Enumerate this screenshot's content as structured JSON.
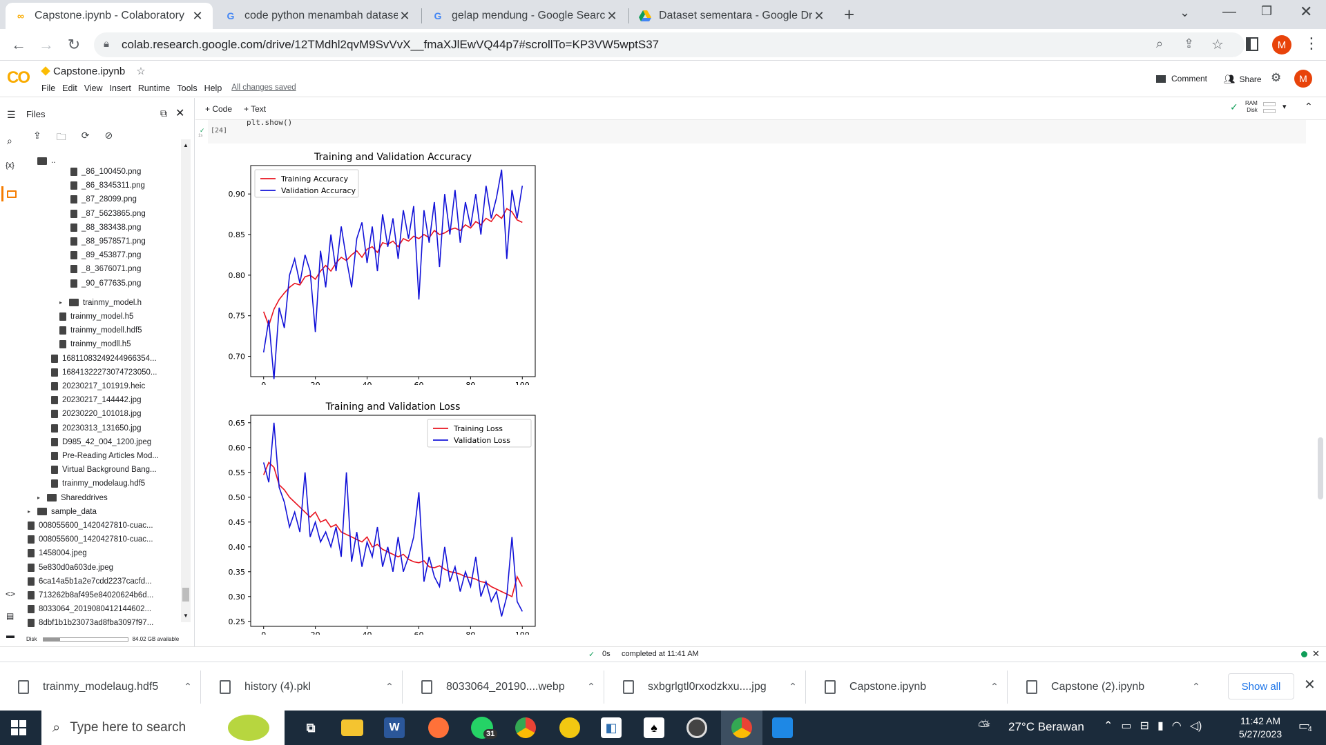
{
  "browser": {
    "tabs": [
      {
        "title": "Capstone.ipynb - Colaboratory",
        "icon": "colab-icon",
        "active": true
      },
      {
        "title": "code python menambah dataset",
        "icon": "google-icon",
        "active": false
      },
      {
        "title": "gelap mendung - Google Search",
        "icon": "google-icon",
        "active": false
      },
      {
        "title": "Dataset sementara - Google Drive",
        "icon": "drive-icon",
        "active": false
      }
    ],
    "new_tab": "+",
    "url": "colab.research.google.com/drive/12TMdhl2qvM9SvVvX__fmaXJlEwVQ44p7#scrollTo=KP3VW5wptS37",
    "profile_initial": "M"
  },
  "colab": {
    "logo": "CO",
    "notebook_name": "Capstone.ipynb",
    "menus": [
      "File",
      "Edit",
      "View",
      "Insert",
      "Runtime",
      "Tools",
      "Help"
    ],
    "saved_status": "All changes saved",
    "comment": "Comment",
    "share": "Share",
    "add_code": "+ Code",
    "add_text": "+ Text",
    "ram": "RAM",
    "disk": "Disk",
    "code_snippet": "plt.show()",
    "cell_index": "[24]",
    "cell_time": "1s"
  },
  "files_panel": {
    "title": "Files",
    "parent": "..",
    "items": [
      {
        "name": "_86_100450.png",
        "type": "file",
        "indent": 3
      },
      {
        "name": "_86_8345311.png",
        "type": "file",
        "indent": 3
      },
      {
        "name": "_87_28099.png",
        "type": "file",
        "indent": 3
      },
      {
        "name": "_87_5623865.png",
        "type": "file",
        "indent": 3
      },
      {
        "name": "_88_383438.png",
        "type": "file",
        "indent": 3
      },
      {
        "name": "_88_9578571.png",
        "type": "file",
        "indent": 3
      },
      {
        "name": "_89_453877.png",
        "type": "file",
        "indent": 3
      },
      {
        "name": "_8_3676071.png",
        "type": "file",
        "indent": 3
      },
      {
        "name": "_90_677635.png",
        "type": "file",
        "indent": 3
      },
      {
        "name": "trainmy_model.h",
        "type": "folder",
        "indent": 2
      },
      {
        "name": "trainmy_model.h5",
        "type": "file",
        "indent": 2
      },
      {
        "name": "trainmy_modell.hdf5",
        "type": "file",
        "indent": 2
      },
      {
        "name": "trainmy_modll.h5",
        "type": "file",
        "indent": 2
      },
      {
        "name": "16811083249244966354...",
        "type": "file",
        "indent": 1
      },
      {
        "name": "16841322273074723050...",
        "type": "file",
        "indent": 1
      },
      {
        "name": "20230217_101919.heic",
        "type": "file",
        "indent": 1
      },
      {
        "name": "20230217_144442.jpg",
        "type": "file",
        "indent": 1
      },
      {
        "name": "20230220_101018.jpg",
        "type": "file",
        "indent": 1
      },
      {
        "name": "20230313_131650.jpg",
        "type": "file",
        "indent": 1
      },
      {
        "name": "D985_42_004_1200.jpeg",
        "type": "file",
        "indent": 1
      },
      {
        "name": "Pre-Reading Articles Mod...",
        "type": "file",
        "indent": 1
      },
      {
        "name": "Virtual Background Bang...",
        "type": "file",
        "indent": 1
      },
      {
        "name": "trainmy_modelaug.hdf5",
        "type": "file",
        "indent": 1
      },
      {
        "name": "Shareddrives",
        "type": "folder",
        "indent": 0
      },
      {
        "name": "sample_data",
        "type": "folder",
        "indent": -1
      },
      {
        "name": "008055600_1420427810-cuac...",
        "type": "file",
        "indent": -1
      },
      {
        "name": "008055600_1420427810-cuac...",
        "type": "file",
        "indent": -1
      },
      {
        "name": "1458004.jpeg",
        "type": "file",
        "indent": -1
      },
      {
        "name": "5e830d0a603de.jpeg",
        "type": "file",
        "indent": -1
      },
      {
        "name": "6ca14a5b1a2e7cdd2237cacfd...",
        "type": "file",
        "indent": -1
      },
      {
        "name": "713262b8af495e84020624b6d...",
        "type": "file",
        "indent": -1
      },
      {
        "name": "8033064_2019080412144602...",
        "type": "file",
        "indent": -1
      },
      {
        "name": "8dbf1b1b23073ad8fba3097f97...",
        "type": "file",
        "indent": -1
      }
    ],
    "disk_label": "Disk",
    "disk_available": "84.02 GB available"
  },
  "status": {
    "time": "0s",
    "message": "completed at 11:41 AM"
  },
  "downloads": {
    "items": [
      "trainmy_modelaug.hdf5",
      "history (4).pkl",
      "8033064_20190....webp",
      "sxbgrlgtl0rxodzkxu....jpg",
      "Capstone.ipynb",
      "Capstone (2).ipynb"
    ],
    "show_all": "Show all"
  },
  "taskbar": {
    "search_placeholder": "Type here to search",
    "weather": "27°C  Berawan",
    "time": "11:42 AM",
    "date": "5/27/2023",
    "whatsapp_badge": "31",
    "notif_count": "4"
  },
  "chart_data": [
    {
      "type": "line",
      "title": "Training and Validation Accuracy",
      "xlim": [
        -5,
        105
      ],
      "ylim": [
        0.675,
        0.935
      ],
      "xticks": [
        0,
        20,
        40,
        60,
        80,
        100
      ],
      "yticks": [
        0.7,
        0.75,
        0.8,
        0.85,
        0.9
      ],
      "legend_position": "upper-left",
      "series": [
        {
          "name": "Training Accuracy",
          "color": "#e8121e",
          "x": [
            0,
            2,
            4,
            6,
            8,
            10,
            12,
            14,
            16,
            18,
            20,
            22,
            24,
            26,
            28,
            30,
            32,
            34,
            36,
            38,
            40,
            42,
            44,
            46,
            48,
            50,
            52,
            54,
            56,
            58,
            60,
            62,
            64,
            66,
            68,
            70,
            72,
            74,
            76,
            78,
            80,
            82,
            84,
            86,
            88,
            90,
            92,
            94,
            96,
            98,
            100
          ],
          "values": [
            0.755,
            0.738,
            0.758,
            0.77,
            0.778,
            0.785,
            0.79,
            0.788,
            0.798,
            0.8,
            0.795,
            0.805,
            0.812,
            0.805,
            0.815,
            0.822,
            0.818,
            0.825,
            0.83,
            0.822,
            0.832,
            0.835,
            0.828,
            0.84,
            0.838,
            0.842,
            0.835,
            0.845,
            0.842,
            0.848,
            0.845,
            0.85,
            0.846,
            0.855,
            0.85,
            0.852,
            0.856,
            0.858,
            0.855,
            0.862,
            0.858,
            0.866,
            0.862,
            0.87,
            0.866,
            0.875,
            0.87,
            0.882,
            0.878,
            0.868,
            0.865
          ]
        },
        {
          "name": "Validation Accuracy",
          "color": "#1212d8",
          "x": [
            0,
            2,
            4,
            6,
            8,
            10,
            12,
            14,
            16,
            18,
            20,
            22,
            24,
            26,
            28,
            30,
            32,
            34,
            36,
            38,
            40,
            42,
            44,
            46,
            48,
            50,
            52,
            54,
            56,
            58,
            60,
            62,
            64,
            66,
            68,
            70,
            72,
            74,
            76,
            78,
            80,
            82,
            84,
            86,
            88,
            90,
            92,
            94,
            96,
            98,
            100
          ],
          "values": [
            0.705,
            0.745,
            0.672,
            0.76,
            0.735,
            0.8,
            0.82,
            0.79,
            0.825,
            0.805,
            0.73,
            0.83,
            0.785,
            0.85,
            0.805,
            0.86,
            0.82,
            0.785,
            0.845,
            0.865,
            0.815,
            0.86,
            0.805,
            0.875,
            0.835,
            0.87,
            0.82,
            0.88,
            0.845,
            0.885,
            0.77,
            0.88,
            0.84,
            0.89,
            0.81,
            0.9,
            0.85,
            0.905,
            0.84,
            0.89,
            0.86,
            0.9,
            0.85,
            0.91,
            0.87,
            0.895,
            0.93,
            0.82,
            0.905,
            0.87,
            0.91
          ]
        }
      ]
    },
    {
      "type": "line",
      "title": "Training and Validation Loss",
      "xlim": [
        -5,
        105
      ],
      "ylim": [
        0.24,
        0.665
      ],
      "xticks": [
        0,
        20,
        40,
        60,
        80,
        100
      ],
      "yticks": [
        0.25,
        0.3,
        0.35,
        0.4,
        0.45,
        0.5,
        0.55,
        0.6,
        0.65
      ],
      "legend_position": "upper-right",
      "series": [
        {
          "name": "Training Loss",
          "color": "#e8121e",
          "x": [
            0,
            2,
            4,
            6,
            8,
            10,
            12,
            14,
            16,
            18,
            20,
            22,
            24,
            26,
            28,
            30,
            32,
            34,
            36,
            38,
            40,
            42,
            44,
            46,
            48,
            50,
            52,
            54,
            56,
            58,
            60,
            62,
            64,
            66,
            68,
            70,
            72,
            74,
            76,
            78,
            80,
            82,
            84,
            86,
            88,
            90,
            92,
            94,
            96,
            98,
            100
          ],
          "values": [
            0.545,
            0.57,
            0.56,
            0.525,
            0.515,
            0.5,
            0.49,
            0.48,
            0.47,
            0.46,
            0.47,
            0.45,
            0.455,
            0.44,
            0.445,
            0.43,
            0.425,
            0.42,
            0.415,
            0.41,
            0.42,
            0.4,
            0.405,
            0.395,
            0.39,
            0.385,
            0.38,
            0.385,
            0.375,
            0.37,
            0.368,
            0.372,
            0.36,
            0.358,
            0.362,
            0.355,
            0.35,
            0.348,
            0.345,
            0.34,
            0.338,
            0.335,
            0.33,
            0.328,
            0.32,
            0.315,
            0.31,
            0.305,
            0.3,
            0.34,
            0.32
          ]
        },
        {
          "name": "Validation Loss",
          "color": "#1212d8",
          "x": [
            0,
            2,
            4,
            6,
            8,
            10,
            12,
            14,
            16,
            18,
            20,
            22,
            24,
            26,
            28,
            30,
            32,
            34,
            36,
            38,
            40,
            42,
            44,
            46,
            48,
            50,
            52,
            54,
            56,
            58,
            60,
            62,
            64,
            66,
            68,
            70,
            72,
            74,
            76,
            78,
            80,
            82,
            84,
            86,
            88,
            90,
            92,
            94,
            96,
            98,
            100
          ],
          "values": [
            0.57,
            0.53,
            0.65,
            0.52,
            0.49,
            0.44,
            0.47,
            0.43,
            0.55,
            0.42,
            0.45,
            0.41,
            0.43,
            0.4,
            0.44,
            0.38,
            0.55,
            0.37,
            0.43,
            0.36,
            0.41,
            0.38,
            0.44,
            0.36,
            0.4,
            0.35,
            0.42,
            0.35,
            0.38,
            0.42,
            0.51,
            0.33,
            0.38,
            0.34,
            0.32,
            0.4,
            0.33,
            0.36,
            0.31,
            0.35,
            0.32,
            0.38,
            0.3,
            0.33,
            0.29,
            0.31,
            0.26,
            0.3,
            0.42,
            0.29,
            0.27
          ]
        }
      ]
    }
  ]
}
